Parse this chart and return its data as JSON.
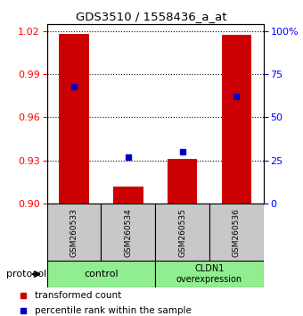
{
  "title": "GDS3510 / 1558436_a_at",
  "samples": [
    "GSM260533",
    "GSM260534",
    "GSM260535",
    "GSM260536"
  ],
  "red_values": [
    1.018,
    0.912,
    0.931,
    1.017
  ],
  "blue_values": [
    68,
    27,
    30,
    62
  ],
  "ylim_left": [
    0.9,
    1.025
  ],
  "ylim_right": [
    0,
    104.167
  ],
  "yticks_left": [
    0.9,
    0.93,
    0.96,
    0.99,
    1.02
  ],
  "yticks_right": [
    0,
    25,
    50,
    75,
    100
  ],
  "ytick_labels_right": [
    "0",
    "25",
    "50",
    "75",
    "100%"
  ],
  "bar_color": "#CC0000",
  "dot_color": "#0000CC",
  "bar_width": 0.55,
  "legend_red": "transformed count",
  "legend_blue": "percentile rank within the sample",
  "protocol_label": "protocol",
  "group_bg_color": "#90EE90",
  "sample_bg_color": "#c8c8c8",
  "group1_label": "control",
  "group2_label": "CLDN1\noverexpression"
}
